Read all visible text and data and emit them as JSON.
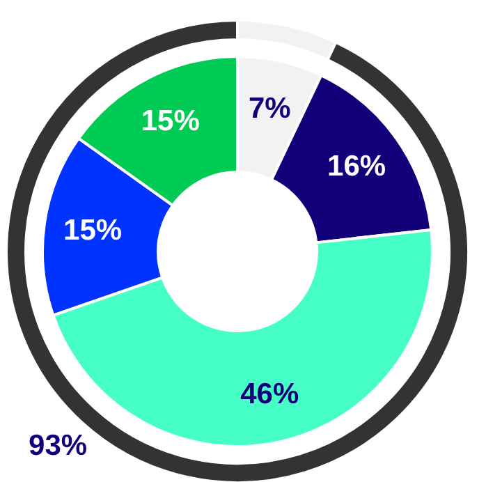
{
  "chart_data": {
    "type": "donut",
    "series": [
      {
        "values": [
          7,
          16,
          46,
          15,
          15
        ],
        "colors": [
          "#f2f2f2",
          "#12007a",
          "#45ffc6",
          "#0033ff",
          "#00cc55"
        ],
        "value_labels": [
          "7%",
          "16%",
          "46%",
          "15%",
          "15%"
        ]
      },
      {
        "values": [
          7,
          93
        ],
        "colors": [
          "#f2f2f2",
          "#333333"
        ],
        "value_labels": [
          null,
          "93%"
        ]
      }
    ]
  }
}
